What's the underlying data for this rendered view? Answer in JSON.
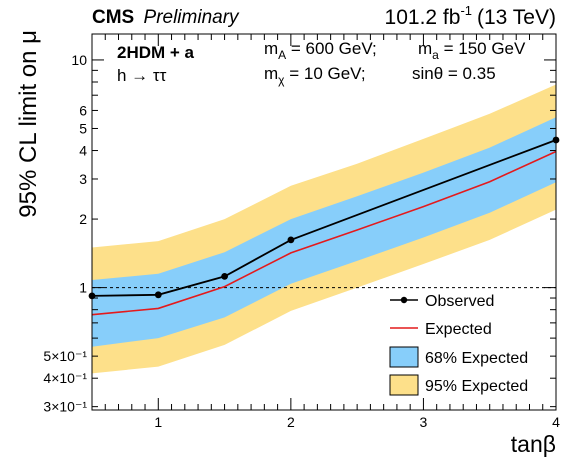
{
  "header": {
    "experiment": "CMS",
    "status": "Preliminary",
    "lumi_value": "101.2 fb",
    "lumi_exp": "-1",
    "energy": "(13 TeV)"
  },
  "annotations": {
    "model": "2HDM + a",
    "channel": "h → ττ",
    "mA": "m",
    "mA_sub": "A",
    "mA_val": " = 600 GeV;",
    "ma": "m",
    "ma_sub": "a",
    "ma_val": " = 150 GeV",
    "mchi": "m",
    "mchi_sub": "χ",
    "mchi_val": " = 10 GeV;",
    "sintheta": "sinθ = 0.35"
  },
  "axes": {
    "xlabel": "tanβ",
    "ylabel": "95% CL limit on μ"
  },
  "legend": {
    "observed": "Observed",
    "expected": "Expected",
    "band68": "68% Expected",
    "band95": "95% Expected"
  },
  "colors": {
    "observed": "#000000",
    "expected": "#e41a1c",
    "band68": "#87cefa",
    "band95": "#fde08a",
    "reference_line": "#000000"
  },
  "chart_data": {
    "type": "line",
    "log_y": true,
    "xlim": [
      0.5,
      4.0
    ],
    "ylim": [
      0.29,
      13.0
    ],
    "x_ticks": [
      1,
      2,
      3,
      4
    ],
    "y_ticks": [
      {
        "value": 0.3,
        "label": "3×10⁻¹"
      },
      {
        "value": 0.4,
        "label": "4×10⁻¹"
      },
      {
        "value": 0.5,
        "label": "5×10⁻¹"
      },
      {
        "value": 1,
        "label": "1"
      },
      {
        "value": 2,
        "label": "2"
      },
      {
        "value": 3,
        "label": "3"
      },
      {
        "value": 4,
        "label": "4"
      },
      {
        "value": 5,
        "label": "5"
      },
      {
        "value": 6,
        "label": "6"
      },
      {
        "value": 10,
        "label": "10"
      }
    ],
    "reference_line_y": 1,
    "legend_position": "bottom-right",
    "series": [
      {
        "name": "Observed",
        "x": [
          0.5,
          1.0,
          1.5,
          2.0,
          4.0
        ],
        "y": [
          0.92,
          0.93,
          1.12,
          1.62,
          4.45
        ]
      },
      {
        "name": "Expected",
        "x": [
          0.5,
          1.0,
          1.5,
          2.0,
          2.5,
          3.0,
          3.5,
          4.0
        ],
        "y": [
          0.76,
          0.81,
          1.01,
          1.42,
          1.79,
          2.27,
          2.92,
          3.96
        ]
      }
    ],
    "bands": [
      {
        "name": "95% Expected",
        "x": [
          0.5,
          1.0,
          1.5,
          2.0,
          2.5,
          3.0,
          3.5,
          4.0
        ],
        "low": [
          0.42,
          0.45,
          0.56,
          0.79,
          1.0,
          1.27,
          1.62,
          2.2
        ],
        "high": [
          1.5,
          1.6,
          2.0,
          2.8,
          3.5,
          4.5,
          5.8,
          7.8
        ]
      },
      {
        "name": "68% Expected",
        "x": [
          0.5,
          1.0,
          1.5,
          2.0,
          2.5,
          3.0,
          3.5,
          4.0
        ],
        "low": [
          0.55,
          0.6,
          0.74,
          1.04,
          1.31,
          1.66,
          2.13,
          2.9
        ],
        "high": [
          1.08,
          1.15,
          1.43,
          2.0,
          2.52,
          3.2,
          4.12,
          5.6
        ]
      }
    ]
  }
}
